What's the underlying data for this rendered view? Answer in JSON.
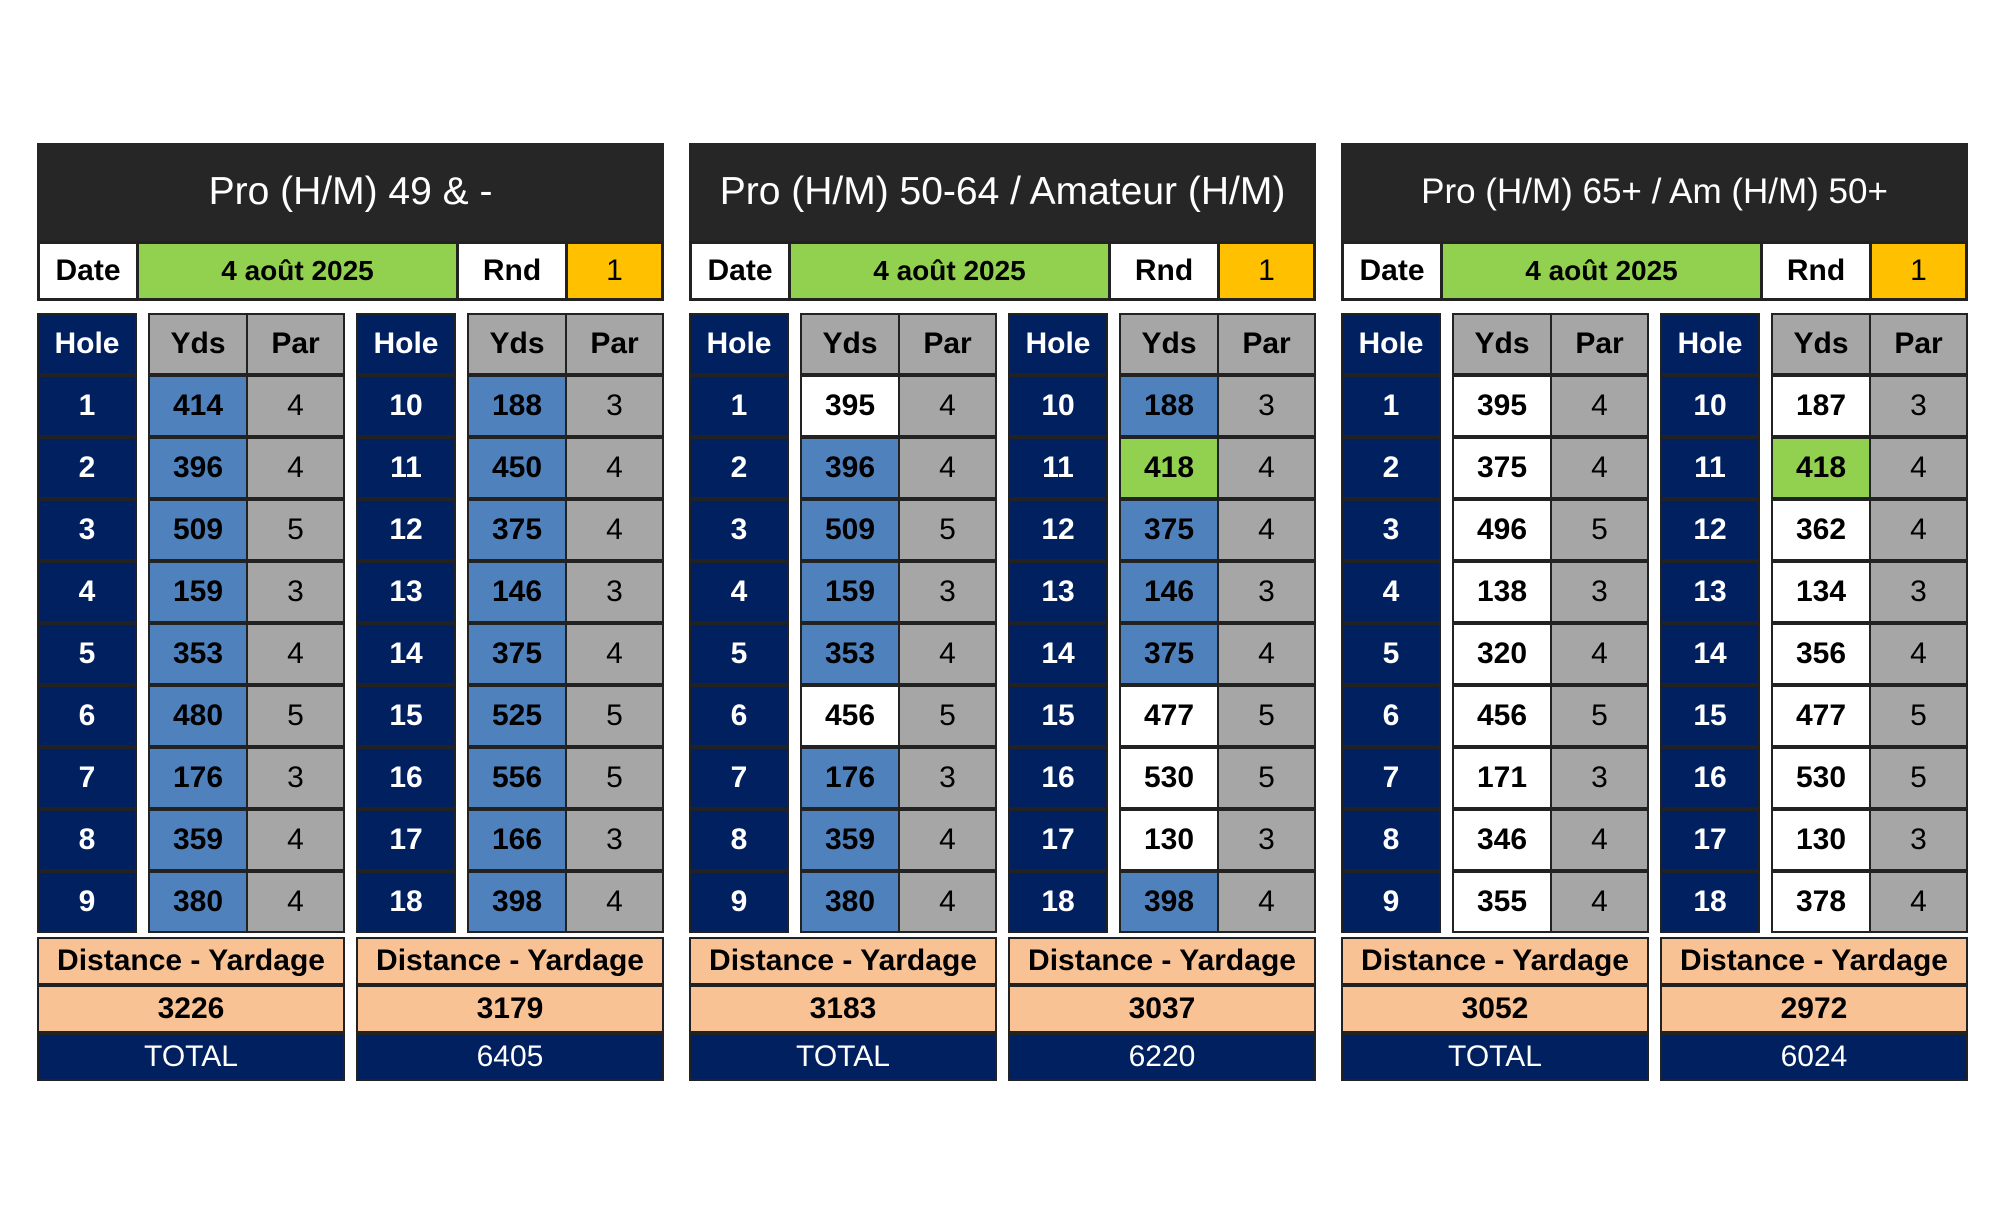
{
  "labels": {
    "date": "Date",
    "rnd": "Rnd",
    "hole": "Hole",
    "yds": "Yds",
    "par": "Par",
    "distance": "Distance - Yardage",
    "total": "TOTAL"
  },
  "colors": {
    "title_bg": "#262626",
    "hole_bg": "#002060",
    "par_bg": "#a6a6a6",
    "blue": "#4f81bd",
    "green": "#92d050",
    "orange": "#ffc000",
    "peach": "#f8c295"
  },
  "cards": [
    {
      "title": "Pro (H/M) 49 & -",
      "date": "4 août 2025",
      "round": "1",
      "front": {
        "holes": [
          "1",
          "2",
          "3",
          "4",
          "5",
          "6",
          "7",
          "8",
          "9"
        ],
        "yds": [
          "414",
          "396",
          "509",
          "159",
          "353",
          "480",
          "176",
          "359",
          "380"
        ],
        "yds_color": [
          "blue",
          "blue",
          "blue",
          "blue",
          "blue",
          "blue",
          "blue",
          "blue",
          "blue"
        ],
        "par": [
          "4",
          "4",
          "5",
          "3",
          "4",
          "5",
          "3",
          "4",
          "4"
        ],
        "distance": "3226"
      },
      "back": {
        "holes": [
          "10",
          "11",
          "12",
          "13",
          "14",
          "15",
          "16",
          "17",
          "18"
        ],
        "yds": [
          "188",
          "450",
          "375",
          "146",
          "375",
          "525",
          "556",
          "166",
          "398"
        ],
        "yds_color": [
          "blue",
          "blue",
          "blue",
          "blue",
          "blue",
          "blue",
          "blue",
          "blue",
          "blue"
        ],
        "par": [
          "3",
          "4",
          "4",
          "3",
          "4",
          "5",
          "5",
          "3",
          "4"
        ],
        "distance": "3179"
      },
      "total": "6405"
    },
    {
      "title": "Pro (H/M) 50-64 / Amateur (H/M)",
      "date": "4 août 2025",
      "round": "1",
      "front": {
        "holes": [
          "1",
          "2",
          "3",
          "4",
          "5",
          "6",
          "7",
          "8",
          "9"
        ],
        "yds": [
          "395",
          "396",
          "509",
          "159",
          "353",
          "456",
          "176",
          "359",
          "380"
        ],
        "yds_color": [
          "white",
          "blue",
          "blue",
          "blue",
          "blue",
          "white",
          "blue",
          "blue",
          "blue"
        ],
        "par": [
          "4",
          "4",
          "5",
          "3",
          "4",
          "5",
          "3",
          "4",
          "4"
        ],
        "distance": "3183"
      },
      "back": {
        "holes": [
          "10",
          "11",
          "12",
          "13",
          "14",
          "15",
          "16",
          "17",
          "18"
        ],
        "yds": [
          "188",
          "418",
          "375",
          "146",
          "375",
          "477",
          "530",
          "130",
          "398"
        ],
        "yds_color": [
          "blue",
          "green",
          "blue",
          "blue",
          "blue",
          "white",
          "white",
          "white",
          "blue"
        ],
        "par": [
          "3",
          "4",
          "4",
          "3",
          "4",
          "5",
          "5",
          "3",
          "4"
        ],
        "distance": "3037"
      },
      "total": "6220"
    },
    {
      "title": "Pro (H/M) 65+ / Am (H/M) 50+",
      "date": "4 août 2025",
      "round": "1",
      "front": {
        "holes": [
          "1",
          "2",
          "3",
          "4",
          "5",
          "6",
          "7",
          "8",
          "9"
        ],
        "yds": [
          "395",
          "375",
          "496",
          "138",
          "320",
          "456",
          "171",
          "346",
          "355"
        ],
        "yds_color": [
          "white",
          "white",
          "white",
          "white",
          "white",
          "white",
          "white",
          "white",
          "white"
        ],
        "par": [
          "4",
          "4",
          "5",
          "3",
          "4",
          "5",
          "3",
          "4",
          "4"
        ],
        "distance": "3052"
      },
      "back": {
        "holes": [
          "10",
          "11",
          "12",
          "13",
          "14",
          "15",
          "16",
          "17",
          "18"
        ],
        "yds": [
          "187",
          "418",
          "362",
          "134",
          "356",
          "477",
          "530",
          "130",
          "378"
        ],
        "yds_color": [
          "white",
          "green",
          "white",
          "white",
          "white",
          "white",
          "white",
          "white",
          "white"
        ],
        "par": [
          "3",
          "4",
          "4",
          "3",
          "4",
          "5",
          "5",
          "3",
          "4"
        ],
        "distance": "2972"
      },
      "total": "6024"
    }
  ]
}
